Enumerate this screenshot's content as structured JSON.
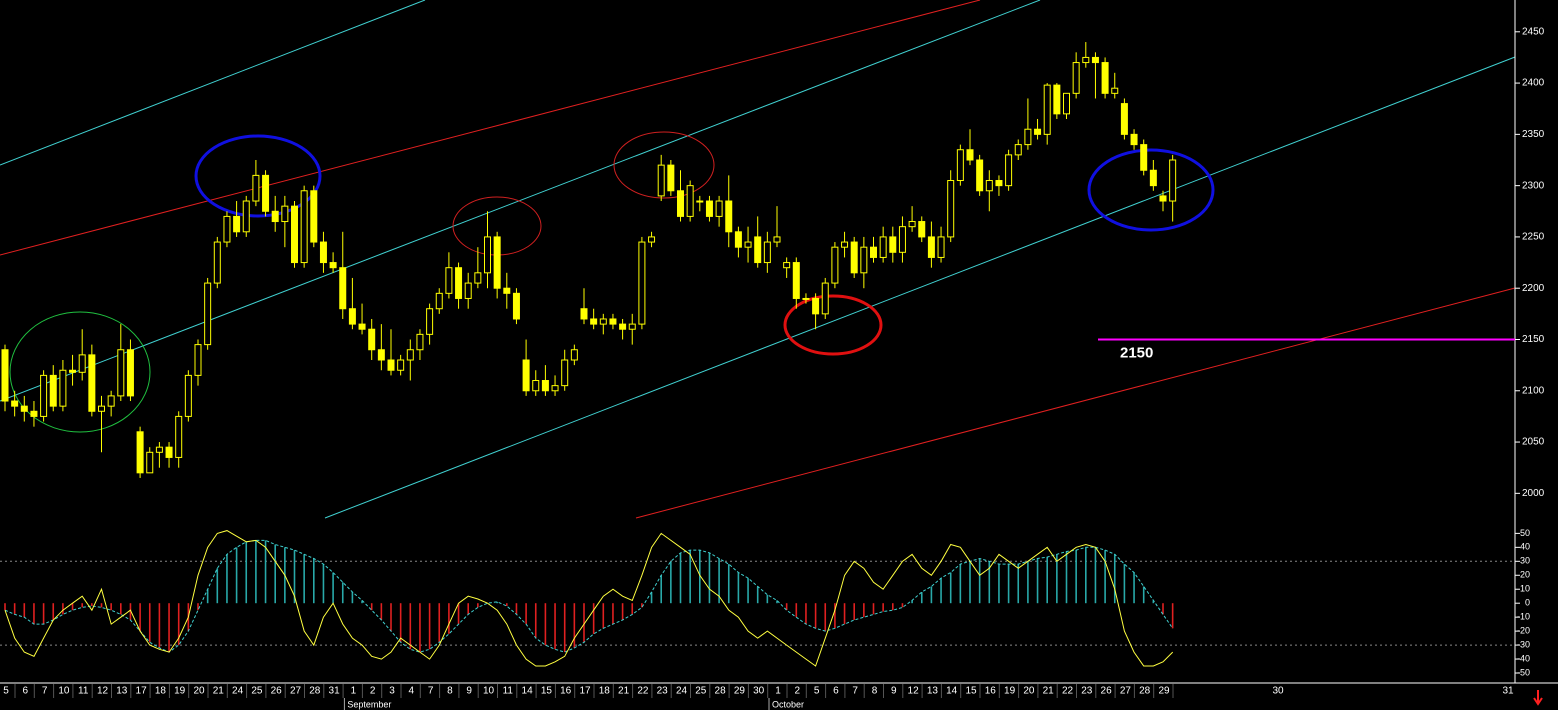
{
  "chart_data": [
    {
      "type": "candlestick",
      "color": "#ffff00",
      "ylim": [
        1974,
        2481
      ],
      "yticks": [
        2000,
        2050,
        2100,
        2150,
        2200,
        2250,
        2300,
        2350,
        2400,
        2450
      ],
      "ohlc": [
        [
          2140,
          2145,
          2080,
          2090
        ],
        [
          2090,
          2100,
          2075,
          2085
        ],
        [
          2085,
          2095,
          2070,
          2080
        ],
        [
          2080,
          2090,
          2065,
          2075
        ],
        [
          2075,
          2120,
          2070,
          2115
        ],
        [
          2115,
          2125,
          2080,
          2085
        ],
        [
          2085,
          2130,
          2080,
          2120
        ],
        [
          2120,
          2135,
          2105,
          2118
        ],
        [
          2118,
          2160,
          2110,
          2135
        ],
        [
          2135,
          2145,
          2075,
          2080
        ],
        [
          2080,
          2095,
          2040,
          2085
        ],
        [
          2085,
          2100,
          2075,
          2095
        ],
        [
          2095,
          2165,
          2090,
          2140
        ],
        [
          2140,
          2150,
          2090,
          2095
        ],
        [
          2060,
          2065,
          2015,
          2020
        ],
        [
          2020,
          2045,
          2020,
          2040
        ],
        [
          2040,
          2050,
          2025,
          2045
        ],
        [
          2045,
          2050,
          2025,
          2035
        ],
        [
          2035,
          2080,
          2025,
          2075
        ],
        [
          2075,
          2120,
          2070,
          2115
        ],
        [
          2115,
          2150,
          2105,
          2145
        ],
        [
          2145,
          2210,
          2140,
          2205
        ],
        [
          2205,
          2250,
          2200,
          2245
        ],
        [
          2245,
          2275,
          2240,
          2270
        ],
        [
          2270,
          2285,
          2250,
          2255
        ],
        [
          2255,
          2290,
          2250,
          2285
        ],
        [
          2285,
          2325,
          2280,
          2310
        ],
        [
          2310,
          2315,
          2270,
          2275
        ],
        [
          2275,
          2290,
          2255,
          2265
        ],
        [
          2265,
          2290,
          2240,
          2280
        ],
        [
          2280,
          2285,
          2220,
          2225
        ],
        [
          2225,
          2300,
          2220,
          2295
        ],
        [
          2295,
          2300,
          2240,
          2245
        ],
        [
          2245,
          2255,
          2215,
          2225
        ],
        [
          2225,
          2235,
          2215,
          2220
        ],
        [
          2220,
          2255,
          2170,
          2180
        ],
        [
          2180,
          2210,
          2160,
          2165
        ],
        [
          2165,
          2185,
          2155,
          2160
        ],
        [
          2160,
          2170,
          2130,
          2140
        ],
        [
          2140,
          2165,
          2120,
          2130
        ],
        [
          2130,
          2160,
          2115,
          2120
        ],
        [
          2120,
          2135,
          2115,
          2130
        ],
        [
          2130,
          2150,
          2110,
          2140
        ],
        [
          2140,
          2160,
          2130,
          2155
        ],
        [
          2155,
          2185,
          2145,
          2180
        ],
        [
          2180,
          2200,
          2175,
          2195
        ],
        [
          2195,
          2235,
          2190,
          2220
        ],
        [
          2220,
          2225,
          2180,
          2190
        ],
        [
          2190,
          2215,
          2180,
          2205
        ],
        [
          2205,
          2240,
          2200,
          2215
        ],
        [
          2215,
          2275,
          2200,
          2250
        ],
        [
          2250,
          2255,
          2190,
          2200
        ],
        [
          2200,
          2215,
          2180,
          2195
        ],
        [
          2195,
          2200,
          2165,
          2170
        ],
        [
          2130,
          2150,
          2095,
          2100
        ],
        [
          2100,
          2120,
          2095,
          2110
        ],
        [
          2110,
          2125,
          2095,
          2100
        ],
        [
          2100,
          2115,
          2095,
          2105
        ],
        [
          2105,
          2140,
          2100,
          2130
        ],
        [
          2130,
          2145,
          2125,
          2140
        ],
        [
          2180,
          2200,
          2165,
          2170
        ],
        [
          2170,
          2180,
          2160,
          2165
        ],
        [
          2165,
          2175,
          2155,
          2170
        ],
        [
          2170,
          2175,
          2160,
          2165
        ],
        [
          2165,
          2170,
          2150,
          2160
        ],
        [
          2160,
          2175,
          2145,
          2165
        ],
        [
          2165,
          2250,
          2160,
          2245
        ],
        [
          2245,
          2255,
          2240,
          2250
        ],
        [
          2290,
          2330,
          2285,
          2320
        ],
        [
          2320,
          2325,
          2290,
          2295
        ],
        [
          2295,
          2315,
          2265,
          2270
        ],
        [
          2270,
          2305,
          2265,
          2300
        ],
        [
          2285,
          2290,
          2275,
          2285
        ],
        [
          2285,
          2290,
          2265,
          2270
        ],
        [
          2270,
          2290,
          2260,
          2285
        ],
        [
          2285,
          2310,
          2240,
          2255
        ],
        [
          2255,
          2260,
          2230,
          2240
        ],
        [
          2240,
          2260,
          2225,
          2245
        ],
        [
          2250,
          2270,
          2220,
          2225
        ],
        [
          2225,
          2255,
          2215,
          2245
        ],
        [
          2245,
          2280,
          2240,
          2250
        ],
        [
          2220,
          2230,
          2210,
          2225
        ],
        [
          2225,
          2230,
          2180,
          2190
        ],
        [
          2190,
          2195,
          2185,
          2190
        ],
        [
          2190,
          2195,
          2160,
          2175
        ],
        [
          2175,
          2210,
          2170,
          2205
        ],
        [
          2205,
          2245,
          2200,
          2240
        ],
        [
          2240,
          2255,
          2230,
          2245
        ],
        [
          2245,
          2250,
          2210,
          2215
        ],
        [
          2215,
          2250,
          2200,
          2240
        ],
        [
          2240,
          2250,
          2225,
          2230
        ],
        [
          2230,
          2260,
          2225,
          2250
        ],
        [
          2250,
          2260,
          2225,
          2235
        ],
        [
          2235,
          2270,
          2225,
          2260
        ],
        [
          2260,
          2280,
          2255,
          2265
        ],
        [
          2265,
          2270,
          2245,
          2250
        ],
        [
          2250,
          2265,
          2220,
          2230
        ],
        [
          2230,
          2260,
          2225,
          2250
        ],
        [
          2250,
          2315,
          2245,
          2305
        ],
        [
          2305,
          2340,
          2300,
          2335
        ],
        [
          2335,
          2355,
          2320,
          2325
        ],
        [
          2325,
          2330,
          2290,
          2295
        ],
        [
          2295,
          2315,
          2275,
          2305
        ],
        [
          2305,
          2310,
          2290,
          2300
        ],
        [
          2300,
          2335,
          2295,
          2330
        ],
        [
          2330,
          2345,
          2325,
          2340
        ],
        [
          2340,
          2385,
          2335,
          2355
        ],
        [
          2355,
          2365,
          2345,
          2350
        ],
        [
          2350,
          2400,
          2340,
          2398
        ],
        [
          2398,
          2400,
          2365,
          2370
        ],
        [
          2370,
          2390,
          2365,
          2390
        ],
        [
          2390,
          2430,
          2385,
          2420
        ],
        [
          2420,
          2440,
          2415,
          2425
        ],
        [
          2425,
          2430,
          2385,
          2420
        ],
        [
          2420,
          2425,
          2385,
          2390
        ],
        [
          2390,
          2410,
          2385,
          2395
        ],
        [
          2380,
          2385,
          2345,
          2350
        ],
        [
          2350,
          2355,
          2335,
          2340
        ],
        [
          2340,
          2345,
          2310,
          2315
        ],
        [
          2315,
          2325,
          2295,
          2300
        ],
        [
          2290,
          2295,
          2275,
          2285
        ],
        [
          2285,
          2330,
          2265,
          2325
        ]
      ],
      "x_labels": [
        "5",
        "6",
        "7",
        "10",
        "11",
        "12",
        "13",
        "17",
        "18",
        "19",
        "20",
        "21",
        "24",
        "25",
        "26",
        "27",
        "28",
        "31",
        "1",
        "2",
        "3",
        "4",
        "7",
        "8",
        "9",
        "10",
        "11",
        "14",
        "15",
        "16",
        "17",
        "18",
        "21",
        "22",
        "23",
        "24",
        "25",
        "28",
        "29",
        "30",
        "1",
        "2",
        "5",
        "6",
        "7",
        "8",
        "9",
        "12",
        "13",
        "14",
        "15",
        "16",
        "19",
        "20",
        "21",
        "22",
        "23",
        "26",
        "27",
        "28",
        "29"
      ],
      "future_x_labels": [
        "30",
        "31"
      ],
      "months": [
        "September",
        "October"
      ],
      "level": {
        "value": 2150,
        "color": "#ff00ff"
      }
    },
    {
      "type": "oscillator",
      "ylim": [
        -55,
        56
      ],
      "yticks": [
        50,
        40,
        30,
        20,
        10,
        0,
        -10,
        -20,
        -30,
        -40,
        -50
      ],
      "dashed_levels": [
        30,
        -30
      ],
      "colors": {
        "up": "#29a9a9",
        "down": "#e02020",
        "line": "#ffff40",
        "signal": "#40d0d0"
      },
      "histogram": [
        -5,
        -8,
        -10,
        -15,
        -15,
        -12,
        -8,
        -5,
        -3,
        -2,
        -3,
        -5,
        -8,
        -12,
        -20,
        -28,
        -32,
        -35,
        -30,
        -20,
        -5,
        10,
        25,
        35,
        40,
        44,
        45,
        45,
        42,
        40,
        38,
        35,
        32,
        28,
        22,
        15,
        8,
        2,
        -5,
        -12,
        -20,
        -28,
        -33,
        -35,
        -33,
        -28,
        -22,
        -15,
        -8,
        -3,
        0,
        1,
        -2,
        -8,
        -15,
        -25,
        -30,
        -33,
        -35,
        -32,
        -28,
        -22,
        -18,
        -15,
        -12,
        -8,
        -3,
        8,
        20,
        30,
        36,
        38,
        38,
        36,
        32,
        28,
        22,
        18,
        12,
        6,
        2,
        -5,
        -10,
        -15,
        -18,
        -20,
        -18,
        -15,
        -12,
        -10,
        -8,
        -6,
        -5,
        -3,
        2,
        8,
        12,
        18,
        22,
        28,
        30,
        32,
        30,
        28,
        28,
        28,
        30,
        32,
        33,
        35,
        37,
        38,
        40,
        40,
        38,
        35,
        28,
        22,
        12,
        2,
        -8,
        -18
      ],
      "line": [
        -5,
        -25,
        -35,
        -38,
        -25,
        -12,
        -5,
        0,
        5,
        -5,
        10,
        -15,
        -10,
        -5,
        -20,
        -30,
        -33,
        -35,
        -25,
        -10,
        20,
        40,
        50,
        52,
        48,
        44,
        45,
        40,
        30,
        20,
        5,
        -20,
        -30,
        -10,
        0,
        -15,
        -25,
        -30,
        -38,
        -40,
        -35,
        -25,
        -30,
        -35,
        -40,
        -30,
        -15,
        0,
        5,
        3,
        0,
        -5,
        -15,
        -30,
        -40,
        -45,
        -45,
        -42,
        -38,
        -25,
        -15,
        -5,
        5,
        10,
        5,
        2,
        20,
        40,
        50,
        45,
        40,
        35,
        20,
        10,
        5,
        -5,
        -10,
        -20,
        -25,
        -20,
        -25,
        -30,
        -35,
        -40,
        -45,
        -25,
        -5,
        20,
        30,
        25,
        15,
        10,
        20,
        30,
        35,
        25,
        20,
        30,
        42,
        40,
        30,
        20,
        25,
        35,
        30,
        25,
        30,
        35,
        40,
        30,
        35,
        40,
        42,
        40,
        30,
        10,
        -20,
        -35,
        -45,
        -45,
        -42,
        -35
      ]
    }
  ]
}
